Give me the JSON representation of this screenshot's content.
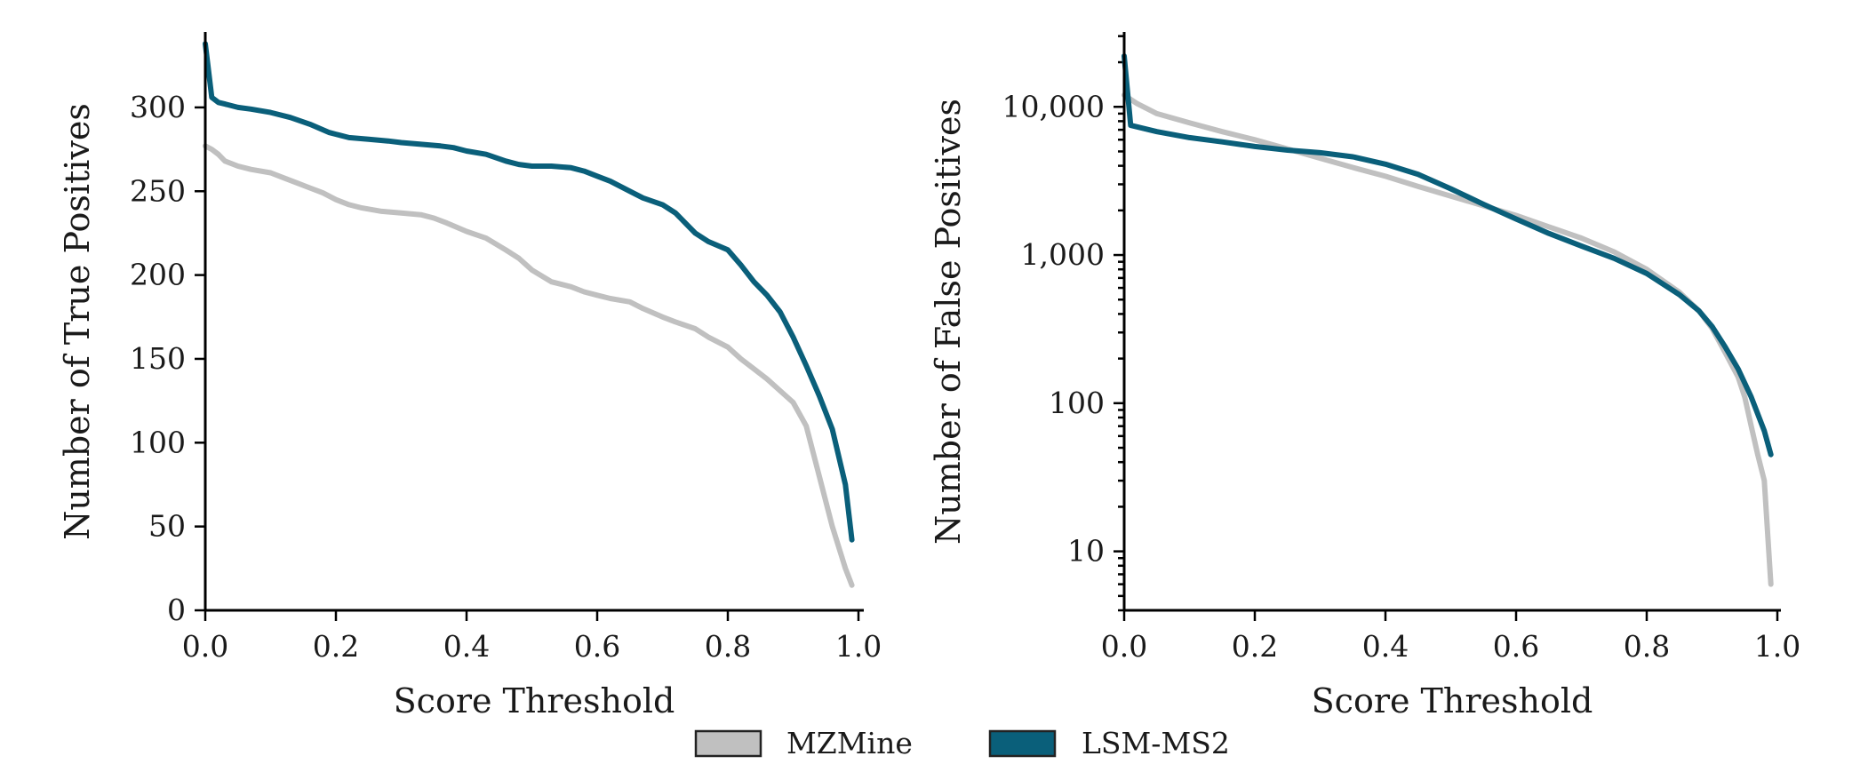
{
  "colors": {
    "MZMine": "#c0c0c0",
    "LSM-MS2": "#0a5f7a"
  },
  "legend": {
    "items": [
      {
        "label": "MZMine",
        "color": "#c0c0c0"
      },
      {
        "label": "LSM-MS2",
        "color": "#0a5f7a"
      }
    ],
    "placement": "bottom-center"
  },
  "chart_data": [
    {
      "type": "line",
      "title": "",
      "xlabel": "Score Threshold",
      "ylabel": "Number of True Positives",
      "xlim": [
        0,
        1.0
      ],
      "ylim": [
        0,
        345
      ],
      "yscale": "linear",
      "x_ticks": [
        "0.0",
        "0.2",
        "0.4",
        "0.6",
        "0.8",
        "1.0"
      ],
      "y_ticks": [
        "0",
        "50",
        "100",
        "150",
        "200",
        "250",
        "300"
      ],
      "x_tick_values": [
        0,
        0.2,
        0.4,
        0.6,
        0.8,
        1.0
      ],
      "y_tick_values": [
        0,
        50,
        100,
        150,
        200,
        250,
        300
      ],
      "series": [
        {
          "name": "MZMine",
          "color": "#c0c0c0",
          "x": [
            0,
            0.01,
            0.02,
            0.03,
            0.05,
            0.07,
            0.1,
            0.12,
            0.14,
            0.16,
            0.18,
            0.2,
            0.22,
            0.24,
            0.27,
            0.3,
            0.33,
            0.35,
            0.37,
            0.4,
            0.43,
            0.46,
            0.48,
            0.5,
            0.53,
            0.56,
            0.58,
            0.6,
            0.62,
            0.65,
            0.67,
            0.7,
            0.72,
            0.75,
            0.77,
            0.8,
            0.82,
            0.84,
            0.86,
            0.88,
            0.9,
            0.92,
            0.94,
            0.96,
            0.98,
            0.99
          ],
          "y": [
            277,
            275,
            272,
            268,
            265,
            263,
            261,
            258,
            255,
            252,
            249,
            245,
            242,
            240,
            238,
            237,
            236,
            234,
            231,
            226,
            222,
            215,
            210,
            203,
            196,
            193,
            190,
            188,
            186,
            184,
            180,
            175,
            172,
            168,
            163,
            157,
            150,
            144,
            138,
            131,
            124,
            110,
            80,
            50,
            25,
            15
          ]
        },
        {
          "name": "LSM-MS2",
          "color": "#0a5f7a",
          "x": [
            0,
            0.01,
            0.02,
            0.03,
            0.05,
            0.07,
            0.1,
            0.13,
            0.16,
            0.19,
            0.2,
            0.22,
            0.25,
            0.28,
            0.3,
            0.33,
            0.36,
            0.38,
            0.4,
            0.43,
            0.46,
            0.48,
            0.5,
            0.53,
            0.56,
            0.58,
            0.6,
            0.62,
            0.65,
            0.67,
            0.7,
            0.72,
            0.75,
            0.77,
            0.8,
            0.82,
            0.84,
            0.86,
            0.88,
            0.9,
            0.92,
            0.94,
            0.96,
            0.98,
            0.99
          ],
          "y": [
            338,
            306,
            303,
            302,
            300,
            299,
            297,
            294,
            290,
            285,
            284,
            282,
            281,
            280,
            279,
            278,
            277,
            276,
            274,
            272,
            268,
            266,
            265,
            265,
            264,
            262,
            259,
            256,
            250,
            246,
            242,
            237,
            225,
            220,
            215,
            206,
            196,
            188,
            178,
            163,
            146,
            128,
            108,
            75,
            42
          ]
        }
      ]
    },
    {
      "type": "line",
      "title": "",
      "xlabel": "Score Threshold",
      "ylabel": "Number of False Positives",
      "xlim": [
        0,
        1.0
      ],
      "ylim": [
        4,
        32000
      ],
      "yscale": "log",
      "x_ticks": [
        "0.0",
        "0.2",
        "0.4",
        "0.6",
        "0.8",
        "1.0"
      ],
      "y_ticks": [
        "10",
        "100",
        "1,000",
        "10,000"
      ],
      "x_tick_values": [
        0,
        0.2,
        0.4,
        0.6,
        0.8,
        1.0
      ],
      "y_tick_values": [
        10,
        100,
        1000,
        10000
      ],
      "series": [
        {
          "name": "MZMine",
          "color": "#c0c0c0",
          "x": [
            0,
            0.02,
            0.05,
            0.1,
            0.15,
            0.2,
            0.25,
            0.3,
            0.35,
            0.4,
            0.45,
            0.5,
            0.55,
            0.6,
            0.65,
            0.7,
            0.75,
            0.8,
            0.85,
            0.88,
            0.9,
            0.92,
            0.94,
            0.95,
            0.96,
            0.97,
            0.98,
            0.99
          ],
          "y": [
            12000,
            10500,
            9000,
            7800,
            6800,
            6000,
            5200,
            4500,
            3900,
            3400,
            2900,
            2500,
            2150,
            1850,
            1550,
            1300,
            1050,
            800,
            560,
            420,
            320,
            220,
            150,
            110,
            70,
            45,
            30,
            6
          ]
        },
        {
          "name": "LSM-MS2",
          "color": "#0a5f7a",
          "x": [
            0,
            0.01,
            0.05,
            0.1,
            0.15,
            0.2,
            0.25,
            0.3,
            0.35,
            0.4,
            0.45,
            0.5,
            0.55,
            0.6,
            0.65,
            0.7,
            0.75,
            0.8,
            0.85,
            0.88,
            0.9,
            0.92,
            0.94,
            0.96,
            0.98,
            0.99
          ],
          "y": [
            22000,
            7500,
            6800,
            6200,
            5800,
            5400,
            5100,
            4900,
            4600,
            4100,
            3500,
            2800,
            2200,
            1750,
            1400,
            1150,
            950,
            750,
            540,
            420,
            330,
            240,
            170,
            110,
            65,
            45
          ]
        }
      ]
    }
  ]
}
